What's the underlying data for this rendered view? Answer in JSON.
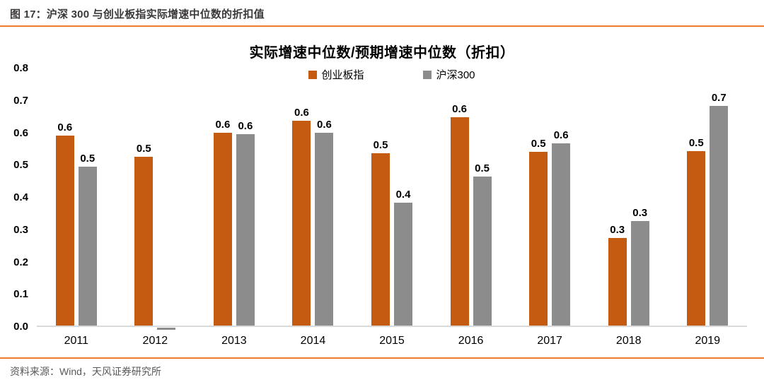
{
  "header": {
    "title": "图 17：沪深 300 与创业板指实际增速中位数的折扣值"
  },
  "footer": {
    "source": "资料来源：Wind，天风证券研究所"
  },
  "colors": {
    "accent_orange": "#C55A11",
    "series_gray": "#8C8C8C",
    "rule_orange": "#ED7D31",
    "axis_line": "#D9D9D9",
    "header_text": "#3B3838",
    "footer_text": "#595959"
  },
  "chart_data": {
    "type": "bar",
    "title": "实际增速中位数/预期增速中位数（折扣）",
    "categories": [
      "2011",
      "2012",
      "2013",
      "2014",
      "2015",
      "2016",
      "2017",
      "2018",
      "2019"
    ],
    "series": [
      {
        "name": "创业板指",
        "key": "cybz",
        "color": "#C55A11",
        "values": [
          0.587,
          0.522,
          0.597,
          0.633,
          0.533,
          0.644,
          0.537,
          0.271,
          0.54
        ],
        "labels": [
          "0.6",
          "0.5",
          "0.6",
          "0.6",
          "0.5",
          "0.6",
          "0.5",
          "0.3",
          "0.5"
        ]
      },
      {
        "name": "沪深300",
        "key": "hs300",
        "color": "#8C8C8C",
        "values": [
          0.491,
          -0.005,
          0.592,
          0.597,
          0.38,
          0.461,
          0.564,
          0.323,
          0.68
        ],
        "labels": [
          "0.5",
          "",
          "0.6",
          "0.6",
          "0.4",
          "0.5",
          "0.6",
          "0.3",
          "0.7"
        ]
      }
    ],
    "ylim": [
      0,
      0.8
    ],
    "yticks": [
      "0.8",
      "0.7",
      "0.6",
      "0.5",
      "0.4",
      "0.3",
      "0.2",
      "0.1",
      "0.0"
    ],
    "grid": false,
    "legend_position": "top-center"
  }
}
